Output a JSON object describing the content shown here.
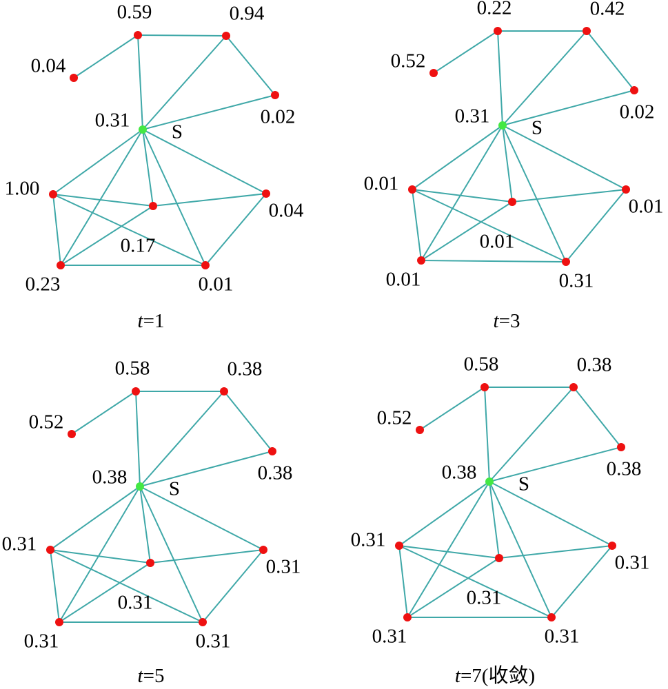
{
  "panels": [
    {
      "node_labels": [
        "0.59",
        "0.94",
        "0.04",
        "0.02",
        "0.31",
        "1.00",
        "0.17",
        "0.04",
        "0.23",
        "0.01"
      ],
      "source_label": "S",
      "caption_var": "t",
      "caption": "=1"
    },
    {
      "node_labels": [
        "0.22",
        "0.42",
        "0.52",
        "0.02",
        "0.31",
        "0.01",
        "0.01",
        "0.01",
        "0.01",
        "0.31"
      ],
      "source_label": "S",
      "caption_var": "t",
      "caption": "=3"
    },
    {
      "node_labels": [
        "0.58",
        "0.38",
        "0.52",
        "0.38",
        "0.38",
        "0.31",
        "0.31",
        "0.31",
        "0.31",
        "0.31"
      ],
      "source_label": "S",
      "caption_var": "t",
      "caption": "=5"
    },
    {
      "node_labels": [
        "0.58",
        "0.38",
        "0.52",
        "0.38",
        "0.38",
        "0.31",
        "0.31",
        "0.31",
        "0.31",
        "0.31"
      ],
      "source_label": "S",
      "caption_var": "t",
      "caption": "=7(收敛)"
    }
  ]
}
